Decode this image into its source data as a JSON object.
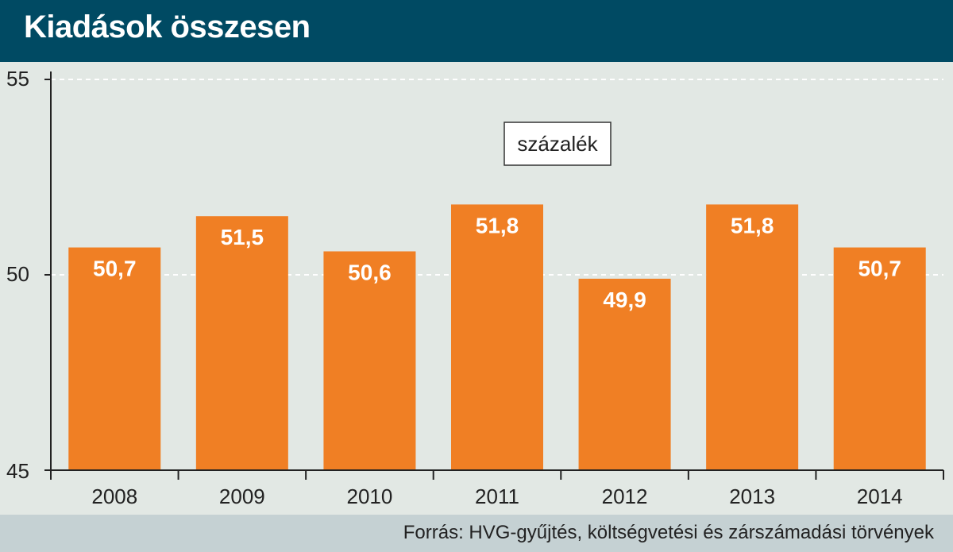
{
  "header": {
    "title": "Kiadások összesen"
  },
  "footer": {
    "source": "Forrás: HVG-gyűjtés, költségvetési és zárszámadási törvények"
  },
  "colors": {
    "header_bg": "#004a63",
    "bar": "#f07f24",
    "plot_bg": "#e2e8e4",
    "footer_bg": "#c5d1d3"
  },
  "chart_data": {
    "type": "bar",
    "title": "Kiadások összesen",
    "unit_label": "százalék",
    "categories": [
      "2008",
      "2009",
      "2010",
      "2011",
      "2012",
      "2013",
      "2014"
    ],
    "values": [
      50.7,
      51.5,
      50.6,
      51.8,
      49.9,
      51.8,
      50.7
    ],
    "value_labels": [
      "50,7",
      "51,5",
      "50,6",
      "51,8",
      "49,9",
      "51,8",
      "50,7"
    ],
    "ylim": [
      45,
      55
    ],
    "yticks": [
      45,
      50,
      55
    ],
    "ytick_labels": [
      "45",
      "50",
      "55"
    ],
    "grid": true,
    "legend": "none"
  }
}
